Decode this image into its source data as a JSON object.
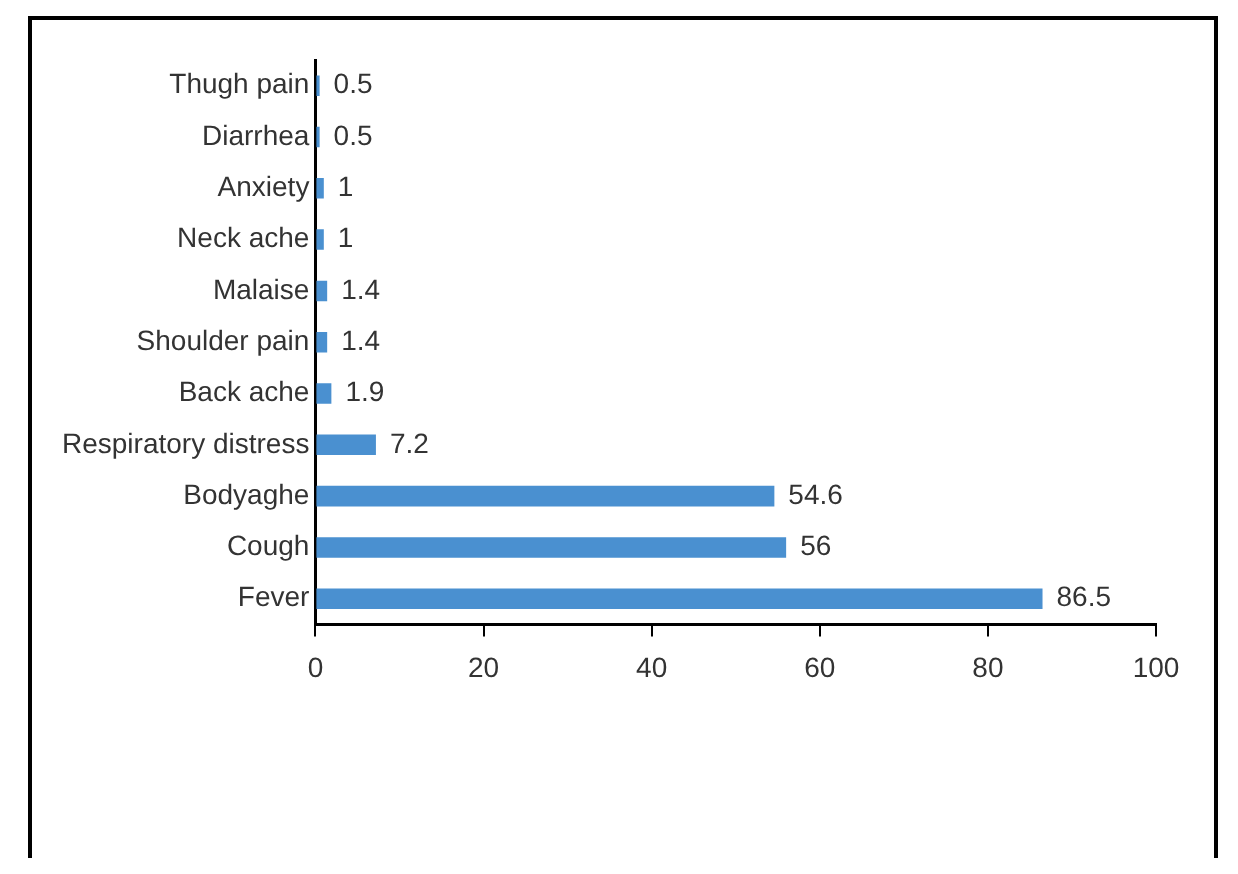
{
  "chart_data": {
    "type": "bar",
    "orientation": "horizontal",
    "categories": [
      "Thugh pain",
      "Diarrhea",
      "Anxiety",
      "Neck ache",
      "Malaise",
      "Shoulder pain",
      "Back ache",
      "Respiratory distress",
      "Bodyaghe",
      "Cough",
      "Fever"
    ],
    "values": [
      0.5,
      0.5,
      1,
      1,
      1.4,
      1.4,
      1.9,
      7.2,
      54.6,
      56,
      86.5
    ],
    "color": "#4a90d0",
    "xlim": [
      0,
      100
    ],
    "xticks": [
      0,
      20,
      40,
      60,
      80,
      100
    ],
    "data_labels": true,
    "grid": false,
    "legend": false
  }
}
